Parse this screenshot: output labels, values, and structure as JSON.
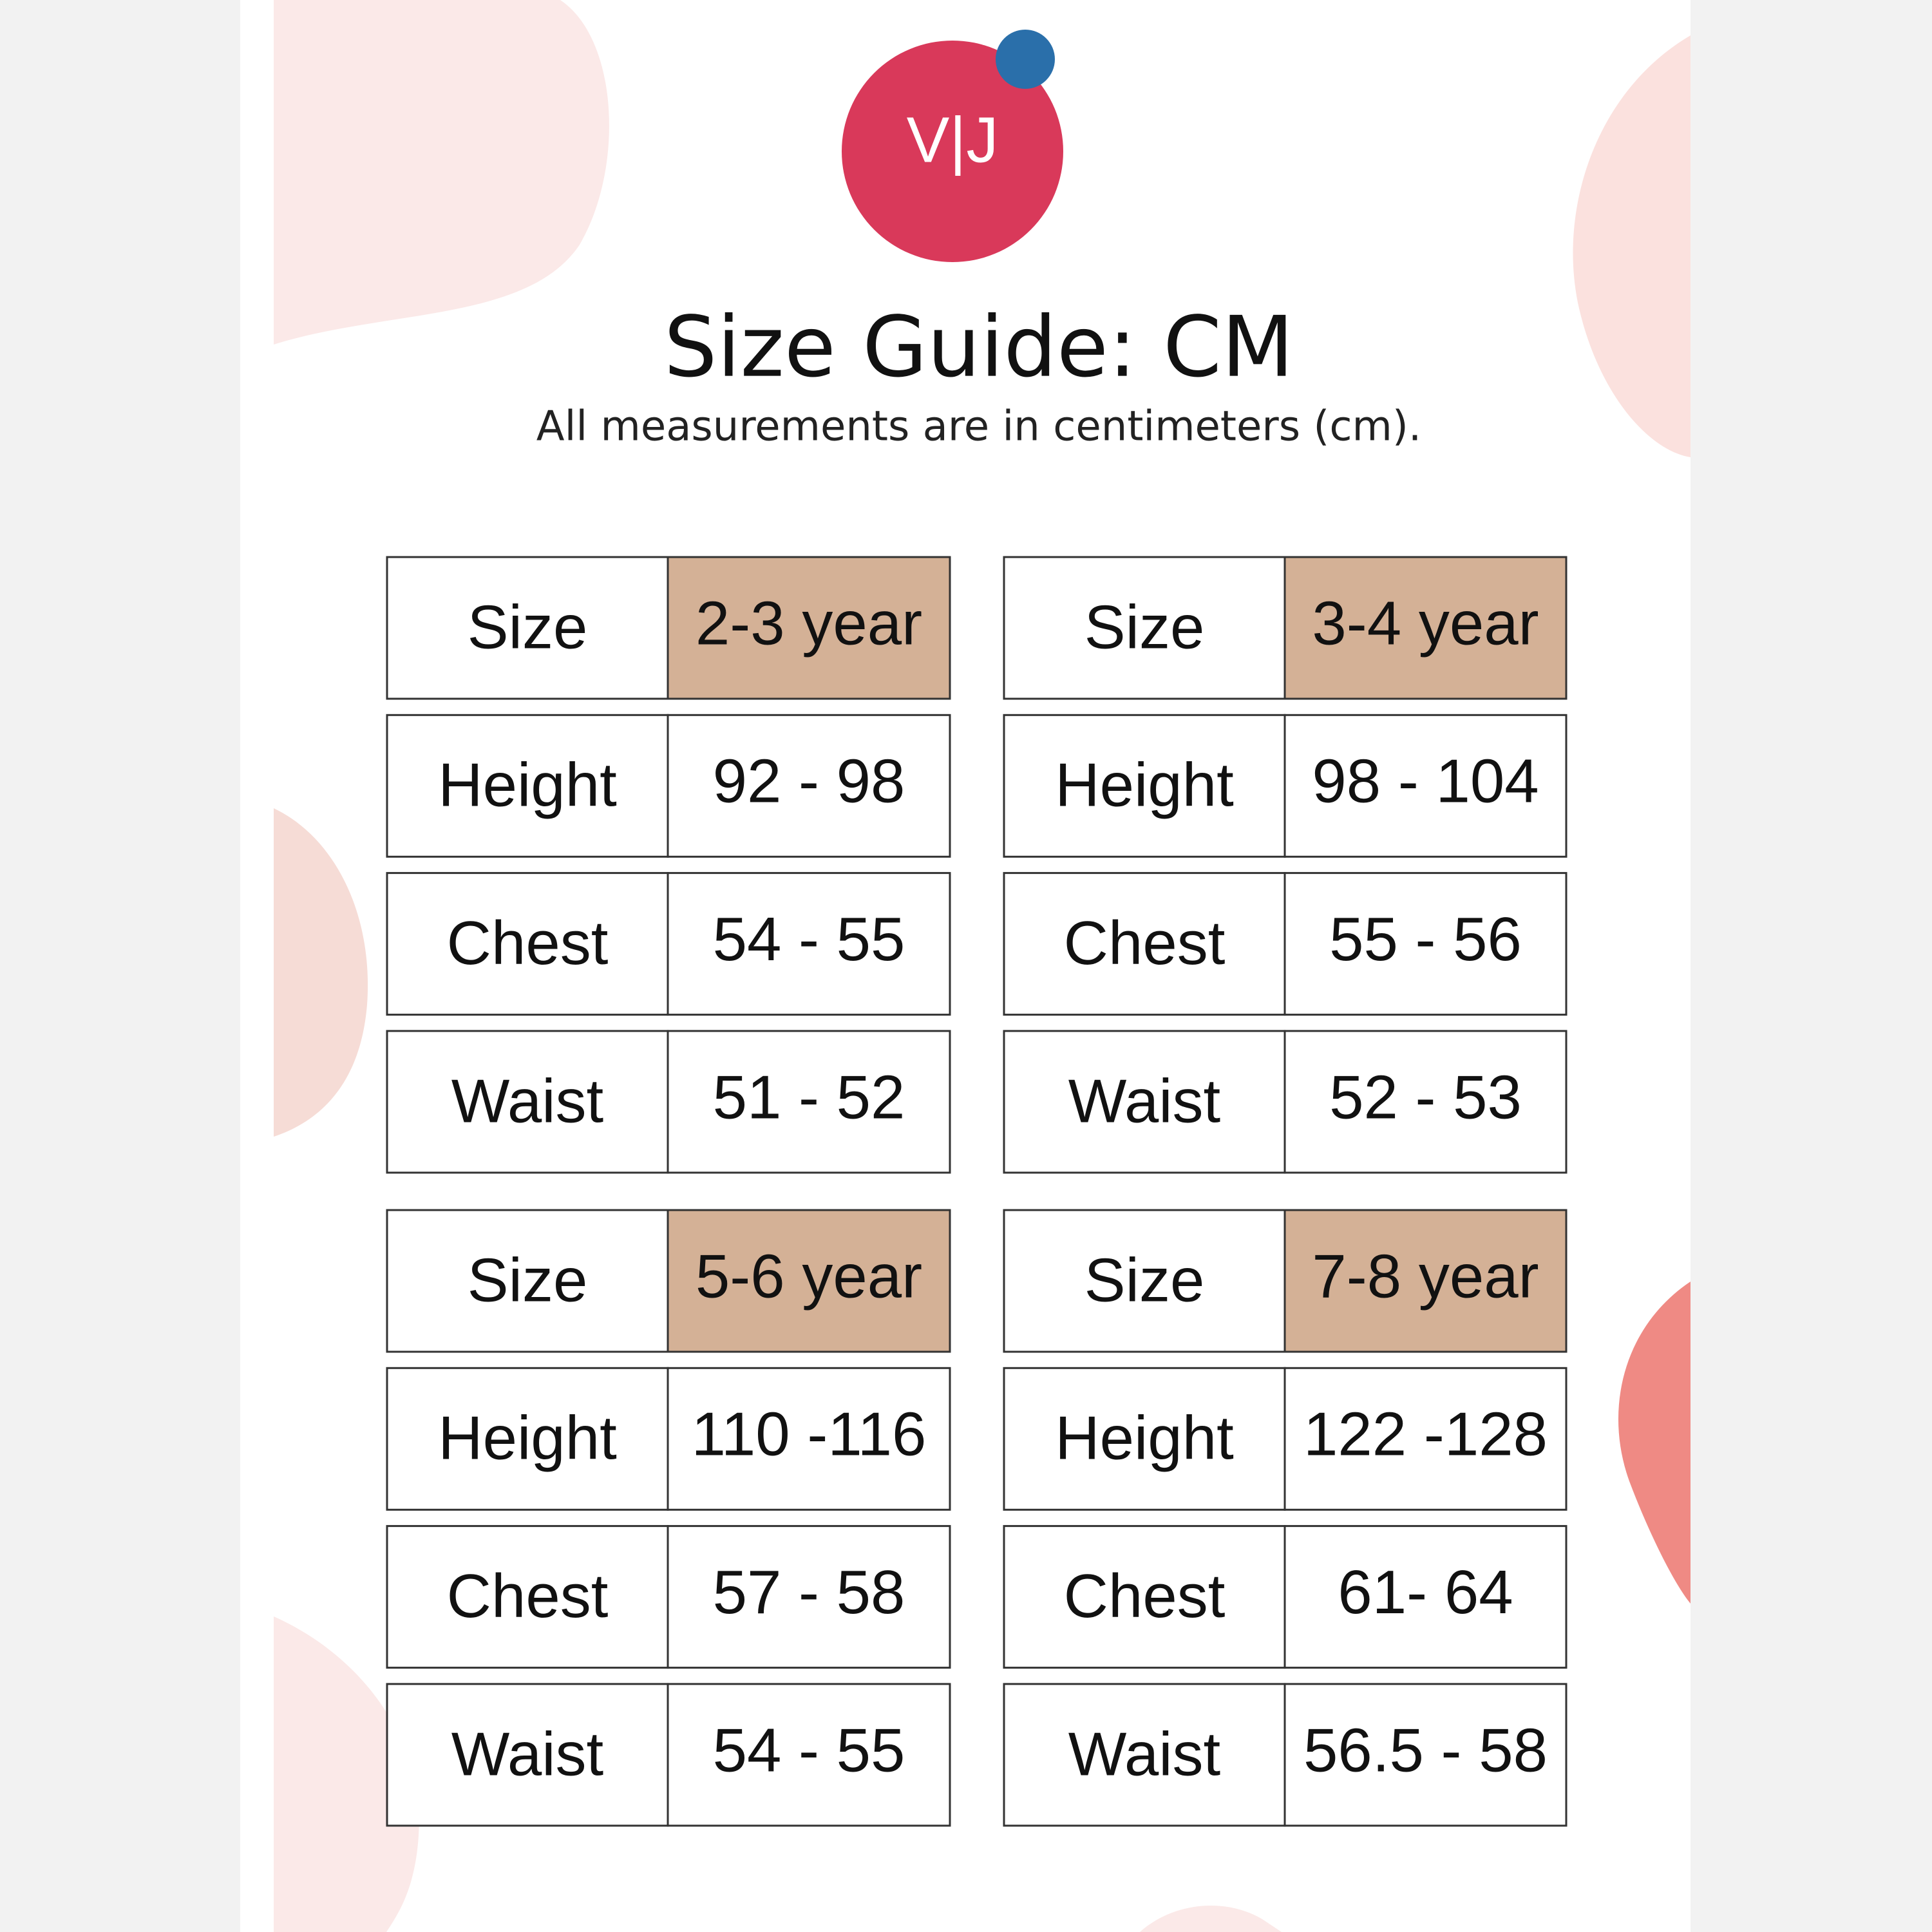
{
  "logo": {
    "text": "V|J"
  },
  "header": {
    "title": "Size Guide: CM",
    "subtitle": "All measurements are in centimeters (cm)."
  },
  "tables": [
    {
      "header": [
        "Size",
        "2-3 year"
      ],
      "rows": [
        [
          "Height",
          "92 - 98"
        ],
        [
          "Chest",
          "54 - 55"
        ],
        [
          "Waist",
          "51 - 52"
        ]
      ]
    },
    {
      "header": [
        "Size",
        "3-4 year"
      ],
      "rows": [
        [
          "Height",
          "98 - 104"
        ],
        [
          "Chest",
          "55 - 56"
        ],
        [
          "Waist",
          "52 - 53"
        ]
      ]
    },
    {
      "header": [
        "Size",
        "5-6 year"
      ],
      "rows": [
        [
          "Height",
          "110 -116"
        ],
        [
          "Chest",
          "57 - 58"
        ],
        [
          "Waist",
          "54 - 55"
        ]
      ]
    },
    {
      "header": [
        "Size",
        "7-8 year"
      ],
      "rows": [
        [
          "Height",
          "122 -128"
        ],
        [
          "Chest",
          "61- 64"
        ],
        [
          "Waist",
          "56.5 - 58"
        ]
      ]
    }
  ]
}
